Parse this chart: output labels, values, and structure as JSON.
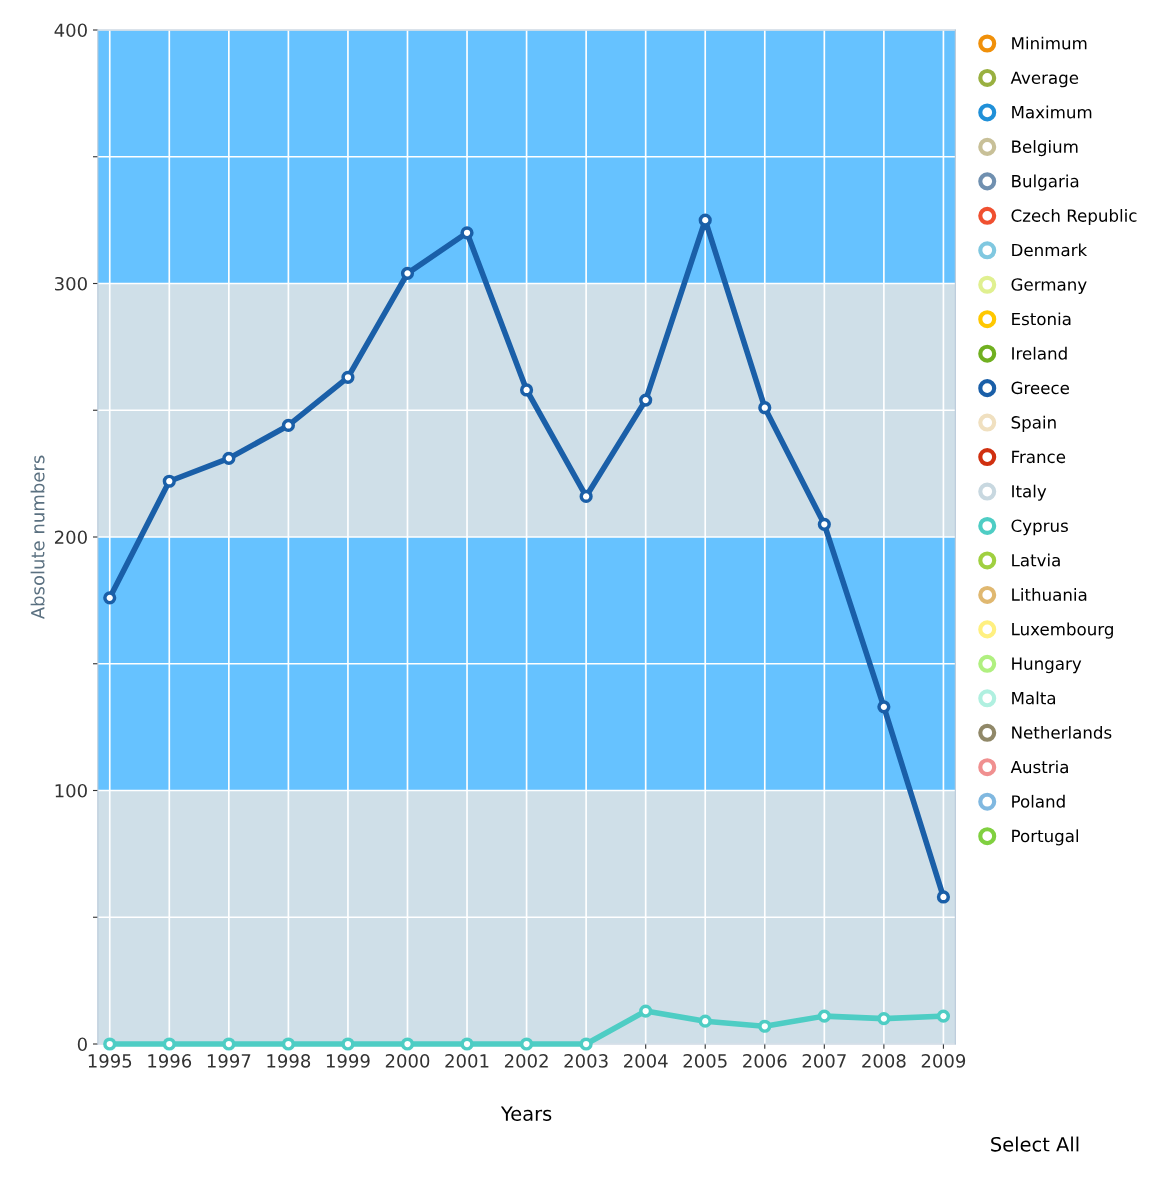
{
  "chart_data": {
    "type": "line",
    "xlabel": "Years",
    "ylabel": "Absolute numbers",
    "categories": [
      "1995",
      "1996",
      "1997",
      "1998",
      "1999",
      "2000",
      "2001",
      "2002",
      "2003",
      "2004",
      "2005",
      "2006",
      "2007",
      "2008",
      "2009"
    ],
    "series": [
      {
        "name": "Minimum",
        "color": "#f0900a",
        "values": [
          null,
          null,
          null,
          null,
          null,
          null,
          null,
          null,
          null,
          null,
          null,
          null,
          null,
          null,
          null
        ]
      },
      {
        "name": "Average",
        "color": "#99b040",
        "values": [
          null,
          null,
          null,
          null,
          null,
          null,
          null,
          null,
          null,
          null,
          null,
          null,
          null,
          null,
          null
        ]
      },
      {
        "name": "Maximum",
        "color": "#2090d8",
        "values": [
          null,
          null,
          null,
          null,
          null,
          null,
          null,
          null,
          null,
          null,
          null,
          null,
          null,
          null,
          null
        ]
      },
      {
        "name": "Belgium",
        "color": "#c8c098",
        "values": [
          null,
          null,
          null,
          null,
          null,
          null,
          null,
          null,
          null,
          null,
          null,
          null,
          null,
          null,
          null
        ]
      },
      {
        "name": "Bulgaria",
        "color": "#7090b0",
        "values": [
          null,
          null,
          null,
          null,
          null,
          null,
          null,
          null,
          null,
          null,
          null,
          null,
          null,
          null,
          null
        ]
      },
      {
        "name": "Czech Republic",
        "color": "#f05030",
        "values": [
          null,
          null,
          null,
          null,
          null,
          null,
          null,
          null,
          null,
          null,
          null,
          null,
          null,
          null,
          null
        ]
      },
      {
        "name": "Denmark",
        "color": "#80c8e0",
        "values": [
          null,
          null,
          null,
          null,
          null,
          null,
          null,
          null,
          null,
          null,
          null,
          null,
          null,
          null,
          null
        ]
      },
      {
        "name": "Germany",
        "color": "#e0f090",
        "values": [
          null,
          null,
          null,
          null,
          null,
          null,
          null,
          null,
          null,
          null,
          null,
          null,
          null,
          null,
          null
        ]
      },
      {
        "name": "Estonia",
        "color": "#ffc800",
        "values": [
          null,
          null,
          null,
          null,
          null,
          null,
          null,
          null,
          null,
          null,
          null,
          null,
          null,
          null,
          null
        ]
      },
      {
        "name": "Ireland",
        "color": "#70b020",
        "values": [
          null,
          null,
          null,
          null,
          null,
          null,
          null,
          null,
          null,
          null,
          null,
          null,
          null,
          null,
          null
        ]
      },
      {
        "name": "Greece",
        "color": "#1a5fa8",
        "values": [
          176,
          222,
          231,
          244,
          263,
          304,
          320,
          258,
          216,
          254,
          325,
          251,
          205,
          133,
          58
        ]
      },
      {
        "name": "Spain",
        "color": "#f0e0c0",
        "values": [
          null,
          null,
          null,
          null,
          null,
          null,
          null,
          null,
          null,
          null,
          null,
          null,
          null,
          null,
          null
        ]
      },
      {
        "name": "France",
        "color": "#d03010",
        "values": [
          null,
          null,
          null,
          null,
          null,
          null,
          null,
          null,
          null,
          null,
          null,
          null,
          null,
          null,
          null
        ]
      },
      {
        "name": "Italy",
        "color": "#c8d8e0",
        "values": [
          null,
          null,
          null,
          null,
          null,
          null,
          null,
          null,
          null,
          null,
          null,
          null,
          null,
          null,
          null
        ]
      },
      {
        "name": "Cyprus",
        "color": "#4ecdc4",
        "values": [
          0,
          0,
          0,
          0,
          0,
          0,
          0,
          0,
          0,
          13,
          9,
          7,
          11,
          10,
          11
        ]
      },
      {
        "name": "Latvia",
        "color": "#a0d040",
        "values": [
          null,
          null,
          null,
          null,
          null,
          null,
          null,
          null,
          null,
          null,
          null,
          null,
          null,
          null,
          null
        ]
      },
      {
        "name": "Lithuania",
        "color": "#e0b870",
        "values": [
          null,
          null,
          null,
          null,
          null,
          null,
          null,
          null,
          null,
          null,
          null,
          null,
          null,
          null,
          null
        ]
      },
      {
        "name": "Luxembourg",
        "color": "#fff080",
        "values": [
          null,
          null,
          null,
          null,
          null,
          null,
          null,
          null,
          null,
          null,
          null,
          null,
          null,
          null,
          null
        ]
      },
      {
        "name": "Hungary",
        "color": "#b0f080",
        "values": [
          null,
          null,
          null,
          null,
          null,
          null,
          null,
          null,
          null,
          null,
          null,
          null,
          null,
          null,
          null
        ]
      },
      {
        "name": "Malta",
        "color": "#b0f0e0",
        "values": [
          null,
          null,
          null,
          null,
          null,
          null,
          null,
          null,
          null,
          null,
          null,
          null,
          null,
          null,
          null
        ]
      },
      {
        "name": "Netherlands",
        "color": "#908868",
        "values": [
          null,
          null,
          null,
          null,
          null,
          null,
          null,
          null,
          null,
          null,
          null,
          null,
          null,
          null,
          null
        ]
      },
      {
        "name": "Austria",
        "color": "#f09090",
        "values": [
          null,
          null,
          null,
          null,
          null,
          null,
          null,
          null,
          null,
          null,
          null,
          null,
          null,
          null,
          null
        ]
      },
      {
        "name": "Poland",
        "color": "#80b8e0",
        "values": [
          null,
          null,
          null,
          null,
          null,
          null,
          null,
          null,
          null,
          null,
          null,
          null,
          null,
          null,
          null
        ]
      },
      {
        "name": "Portugal",
        "color": "#80d040",
        "values": [
          null,
          null,
          null,
          null,
          null,
          null,
          null,
          null,
          null,
          null,
          null,
          null,
          null,
          null,
          null
        ]
      }
    ],
    "ylim": [
      0,
      400
    ],
    "yticks": [
      0,
      {
        "value": 50,
        "label": null
      },
      100,
      {
        "value": 150,
        "label": null
      },
      200,
      {
        "value": 250,
        "label": null
      },
      300,
      {
        "value": 350,
        "label": null
      },
      400
    ],
    "bands": [
      {
        "axis": "y",
        "from": 100,
        "to": 200,
        "color": "#66c2ff"
      },
      {
        "axis": "y",
        "from": 300,
        "to": 400,
        "color": "#66c2ff"
      }
    ],
    "annotations": [
      "Select All"
    ],
    "grid": true,
    "legend": "right",
    "marker": "circle",
    "line_style": "solid"
  }
}
